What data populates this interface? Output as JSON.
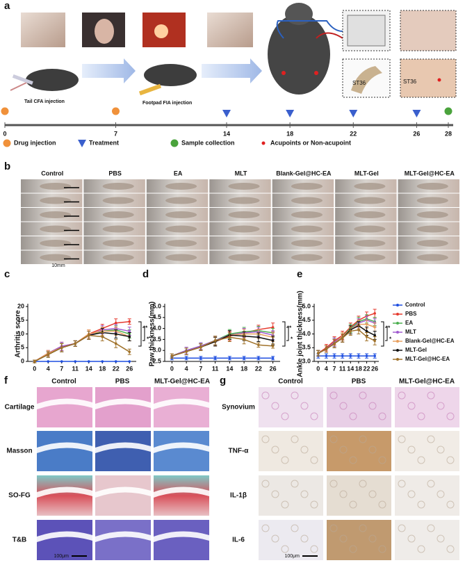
{
  "panel_a": {
    "label": "a",
    "captions": [
      "Tail CFA injection",
      "Footpad FIA injection"
    ],
    "inset_labels": [
      "ST36",
      "ST36"
    ],
    "timeline": {
      "ticks": [
        0,
        7,
        14,
        18,
        22,
        26,
        28
      ]
    },
    "legend": [
      {
        "label": "Drug injection",
        "color": "#f0913a",
        "shape": "circle",
        "days": [
          0,
          7
        ]
      },
      {
        "label": "Treatment",
        "color": "#3a5fcd",
        "shape": "triangle",
        "days": [
          14,
          18,
          22,
          26
        ]
      },
      {
        "label": "Sample collection",
        "color": "#4aa33c",
        "shape": "circle",
        "days": [
          28
        ]
      },
      {
        "label": "Acupoints or Non-acupoint",
        "color": "#e02020",
        "shape": "dot",
        "days": []
      }
    ]
  },
  "panel_b": {
    "label": "b",
    "columns": [
      "Control",
      "PBS",
      "EA",
      "MLT",
      "Blank-Gel@HC-EA",
      "MLT-Gel",
      "MLT-Gel@HC-EA"
    ],
    "scale_bar": "10mm"
  },
  "chart_data": [
    {
      "type": "line",
      "label": "c",
      "ylabel": "Arthritis score",
      "categories": [
        "0",
        "4",
        "7",
        "11",
        "14",
        "18",
        "22",
        "26"
      ],
      "ylim": [
        0,
        20
      ],
      "yticks": [
        0,
        5,
        10,
        15,
        20
      ],
      "annotations": [
        "**",
        "*"
      ],
      "series": [
        {
          "color": "#1f4fe0",
          "values": [
            0,
            0,
            0,
            0,
            0,
            0,
            0,
            0
          ],
          "errors": [
            0,
            0,
            0,
            0,
            0,
            0,
            0,
            0
          ]
        },
        {
          "color": "#e53a2e",
          "values": [
            0,
            3,
            5.5,
            6.5,
            10,
            12,
            14,
            14.5
          ],
          "errors": [
            0.5,
            1,
            1.5,
            1,
            1.5,
            1.5,
            1.5,
            1
          ]
        },
        {
          "color": "#4caf50",
          "values": [
            0,
            2.5,
            5,
            6.5,
            9.5,
            11,
            11.5,
            10
          ],
          "errors": [
            0.5,
            1,
            1.5,
            1,
            1.5,
            1.5,
            1.5,
            1.5
          ]
        },
        {
          "color": "#a05bd0",
          "values": [
            0,
            3,
            5.5,
            6.5,
            9.5,
            11.5,
            12,
            11
          ],
          "errors": [
            0.5,
            1,
            1.5,
            1,
            1.5,
            1.5,
            1.5,
            1.5
          ]
        },
        {
          "color": "#e8a060",
          "values": [
            0,
            3,
            5,
            6.5,
            10,
            11,
            11,
            9
          ],
          "errors": [
            0.5,
            1,
            1.5,
            1,
            1.5,
            1.5,
            1.5,
            1.5
          ]
        },
        {
          "color": "#111111",
          "values": [
            0,
            2.5,
            5,
            6.5,
            9.5,
            10.5,
            10,
            9
          ],
          "errors": [
            0.5,
            1,
            1.5,
            1,
            1.5,
            1.5,
            1.5,
            1.5
          ]
        },
        {
          "color": "#a0722a",
          "values": [
            0,
            2.5,
            5,
            6.5,
            9.5,
            9,
            6.5,
            3.5
          ],
          "errors": [
            0.5,
            1,
            1.5,
            1,
            1.5,
            1.5,
            1.5,
            1
          ]
        }
      ]
    },
    {
      "type": "line",
      "label": "d",
      "ylabel": "Paw thickness(mm)",
      "categories": [
        "0",
        "4",
        "7",
        "11",
        "14",
        "18",
        "22",
        "26"
      ],
      "ylim": [
        2.5,
        5
      ],
      "yticks": [
        2.5,
        {
          "value": 3,
          "label": "3.0"
        },
        3.5,
        {
          "value": 4,
          "label": "4.0"
        },
        4.5,
        {
          "value": 5,
          "label": "5.0"
        }
      ],
      "annotations": [
        "**",
        "*"
      ],
      "series": [
        {
          "color": "#1f4fe0",
          "values": [
            2.65,
            2.65,
            2.65,
            2.65,
            2.65,
            2.65,
            2.65,
            2.65
          ],
          "errors": [
            0.08,
            0.08,
            0.08,
            0.08,
            0.08,
            0.08,
            0.08,
            0.08
          ]
        },
        {
          "color": "#e53a2e",
          "values": [
            2.75,
            2.95,
            3.15,
            3.4,
            3.65,
            3.8,
            3.95,
            4.05
          ],
          "errors": [
            0.1,
            0.15,
            0.15,
            0.2,
            0.2,
            0.2,
            0.2,
            0.2
          ]
        },
        {
          "color": "#4caf50",
          "values": [
            2.75,
            3,
            3.2,
            3.45,
            3.75,
            3.85,
            3.9,
            3.8
          ],
          "errors": [
            0.1,
            0.15,
            0.15,
            0.2,
            0.2,
            0.2,
            0.2,
            0.2
          ]
        },
        {
          "color": "#a05bd0",
          "values": [
            2.75,
            3,
            3.2,
            3.45,
            3.7,
            3.8,
            3.85,
            3.7
          ],
          "errors": [
            0.1,
            0.15,
            0.15,
            0.2,
            0.2,
            0.2,
            0.2,
            0.2
          ]
        },
        {
          "color": "#e8a060",
          "values": [
            2.75,
            2.95,
            3.15,
            3.4,
            3.7,
            3.75,
            3.75,
            3.6
          ],
          "errors": [
            0.1,
            0.15,
            0.15,
            0.2,
            0.2,
            0.2,
            0.2,
            0.2
          ]
        },
        {
          "color": "#111111",
          "values": [
            2.75,
            2.95,
            3.15,
            3.4,
            3.7,
            3.65,
            3.6,
            3.45
          ],
          "errors": [
            0.1,
            0.15,
            0.15,
            0.2,
            0.2,
            0.2,
            0.2,
            0.2
          ]
        },
        {
          "color": "#a0722a",
          "values": [
            2.75,
            2.95,
            3.15,
            3.45,
            3.6,
            3.5,
            3.25,
            3.2
          ],
          "errors": [
            0.1,
            0.15,
            0.15,
            0.2,
            0.2,
            0.2,
            0.1,
            0.1
          ]
        }
      ]
    },
    {
      "type": "line",
      "label": "e",
      "ylabel": "Ankle joint thickness(mm)",
      "categories": [
        "0",
        "4",
        "7",
        "11",
        "14",
        "18",
        "22",
        "26"
      ],
      "ylim": [
        3,
        5
      ],
      "yticks": [
        {
          "value": 3,
          "label": "3.0"
        },
        3.5,
        {
          "value": 4,
          "label": "4.0"
        },
        4.5,
        {
          "value": 5,
          "label": "5.0"
        }
      ],
      "annotations": [
        "**",
        "*"
      ],
      "legend": "right",
      "series": [
        {
          "name": "Control",
          "color": "#1f4fe0",
          "values": [
            3.2,
            3.2,
            3.2,
            3.2,
            3.2,
            3.2,
            3.2,
            3.2
          ],
          "errors": [
            0.08,
            0.08,
            0.08,
            0.08,
            0.08,
            0.08,
            0.08,
            0.08
          ]
        },
        {
          "name": "PBS",
          "color": "#e53a2e",
          "values": [
            3.3,
            3.5,
            3.75,
            3.95,
            4.25,
            4.5,
            4.65,
            4.75
          ],
          "errors": [
            0.1,
            0.12,
            0.15,
            0.15,
            0.15,
            0.15,
            0.15,
            0.15
          ]
        },
        {
          "name": "EA",
          "color": "#4caf50",
          "values": [
            3.3,
            3.45,
            3.7,
            3.9,
            4.2,
            4.45,
            4.55,
            4.45
          ],
          "errors": [
            0.1,
            0.12,
            0.15,
            0.15,
            0.15,
            0.15,
            0.15,
            0.15
          ]
        },
        {
          "name": "MLT",
          "color": "#a05bd0",
          "values": [
            3.3,
            3.45,
            3.7,
            3.9,
            4.15,
            4.4,
            4.5,
            4.4
          ],
          "errors": [
            0.1,
            0.12,
            0.15,
            0.15,
            0.15,
            0.15,
            0.15,
            0.15
          ]
        },
        {
          "name": "Blank-Gel@HC-EA",
          "color": "#e8a060",
          "values": [
            3.3,
            3.45,
            3.65,
            3.9,
            4.15,
            4.35,
            4.35,
            4.25
          ],
          "errors": [
            0.1,
            0.12,
            0.15,
            0.15,
            0.15,
            0.15,
            0.15,
            0.15
          ]
        },
        {
          "name": "MLT-Gel",
          "color": "#111111",
          "values": [
            3.3,
            3.45,
            3.65,
            3.85,
            4.15,
            4.3,
            4.1,
            3.95
          ],
          "errors": [
            0.1,
            0.12,
            0.15,
            0.15,
            0.15,
            0.15,
            0.15,
            0.15
          ]
        },
        {
          "name": "MLT-Gel@HC-EA",
          "color": "#a0722a",
          "values": [
            3.3,
            3.45,
            3.65,
            3.85,
            4.1,
            4.15,
            3.9,
            3.75
          ],
          "errors": [
            0.1,
            0.12,
            0.15,
            0.15,
            0.15,
            0.15,
            0.15,
            0.15
          ]
        }
      ]
    }
  ],
  "panel_f": {
    "label": "f",
    "columns": [
      "Control",
      "PBS",
      "MLT-Gel@HC-EA"
    ],
    "rows": [
      "Cartilage",
      "Masson",
      "SO-FG",
      "T&B"
    ],
    "scale_bar": "100μm"
  },
  "panel_g": {
    "label": "g",
    "columns": [
      "Control",
      "PBS",
      "MLT-Gel@HC-EA"
    ],
    "rows": [
      "Synovium",
      "TNF-α",
      "IL-1β",
      "IL-6"
    ],
    "scale_bar": "100μm"
  }
}
